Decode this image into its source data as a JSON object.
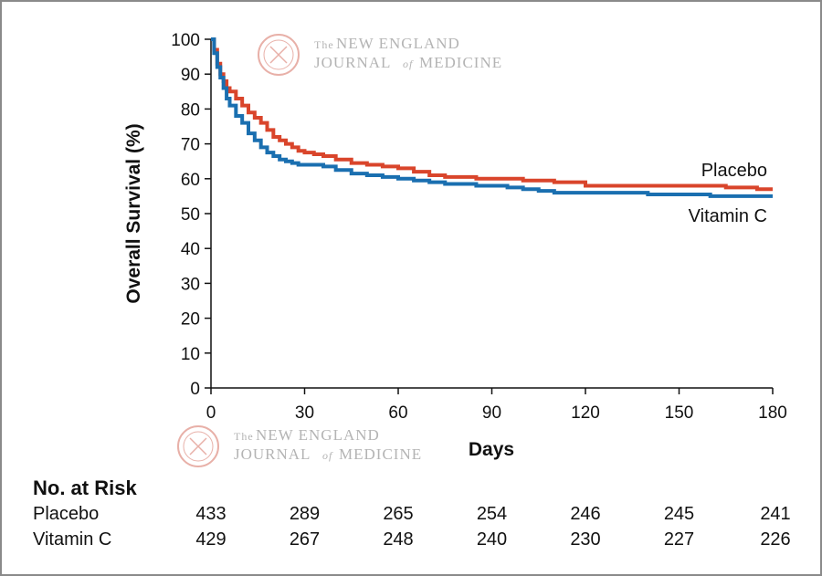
{
  "chart_data": {
    "type": "line",
    "title": "",
    "xlabel": "Days",
    "ylabel": "Overall Survival (%)",
    "xlim": [
      0,
      180
    ],
    "ylim": [
      0,
      100
    ],
    "x_ticks": [
      0,
      30,
      60,
      90,
      120,
      150,
      180
    ],
    "y_ticks": [
      0,
      10,
      20,
      30,
      40,
      50,
      60,
      70,
      80,
      90,
      100
    ],
    "grid": false,
    "legend": "inline labels at right end of curves",
    "series": [
      {
        "name": "Placebo",
        "color": "#d9452b",
        "x": [
          0,
          1,
          2,
          3,
          4,
          5,
          6,
          8,
          10,
          12,
          14,
          16,
          18,
          20,
          22,
          24,
          26,
          28,
          30,
          33,
          36,
          40,
          45,
          50,
          55,
          60,
          65,
          70,
          75,
          80,
          85,
          90,
          95,
          100,
          105,
          110,
          115,
          120,
          130,
          140,
          150,
          160,
          165,
          170,
          175,
          180
        ],
        "y": [
          100,
          97,
          93,
          90,
          88,
          86,
          85,
          83,
          81,
          79,
          77.5,
          76,
          74,
          72,
          71,
          70,
          69,
          68,
          67.5,
          67,
          66.5,
          65.5,
          64.5,
          64,
          63.5,
          63,
          62,
          61,
          60.5,
          60.5,
          60,
          60,
          60,
          59.5,
          59.5,
          59,
          59,
          58,
          58,
          58,
          58,
          58,
          57.5,
          57.5,
          57,
          57
        ]
      },
      {
        "name": "Vitamin C",
        "color": "#1a6fb0",
        "x": [
          0,
          1,
          2,
          3,
          4,
          5,
          6,
          8,
          10,
          12,
          14,
          16,
          18,
          20,
          22,
          24,
          26,
          28,
          30,
          33,
          36,
          40,
          45,
          50,
          55,
          60,
          65,
          70,
          75,
          80,
          85,
          90,
          95,
          100,
          105,
          110,
          115,
          120,
          130,
          140,
          150,
          160,
          165,
          170,
          175,
          180
        ],
        "y": [
          100,
          96,
          92,
          89,
          86,
          83,
          81,
          78,
          76,
          73,
          71,
          69,
          67.5,
          66.5,
          65.5,
          65,
          64.5,
          64,
          64,
          64,
          63.5,
          62.5,
          61.5,
          61,
          60.5,
          60,
          59.5,
          59,
          58.5,
          58.5,
          58,
          58,
          57.5,
          57,
          56.5,
          56,
          56,
          56,
          56,
          55.5,
          55.5,
          55,
          55,
          55,
          55,
          55
        ]
      }
    ]
  },
  "watermark": {
    "line1_prefix": "The",
    "line1": "NEW ENGLAND",
    "line2a": "JOURNAL",
    "line2_of": "of",
    "line2b": "MEDICINE"
  },
  "risk_table": {
    "title": "No. at Risk",
    "rows": [
      {
        "label": "Placebo",
        "values": [
          "433",
          "289",
          "265",
          "254",
          "246",
          "245",
          "241"
        ]
      },
      {
        "label": "Vitamin C",
        "values": [
          "429",
          "267",
          "248",
          "240",
          "230",
          "227",
          "226"
        ]
      }
    ]
  }
}
